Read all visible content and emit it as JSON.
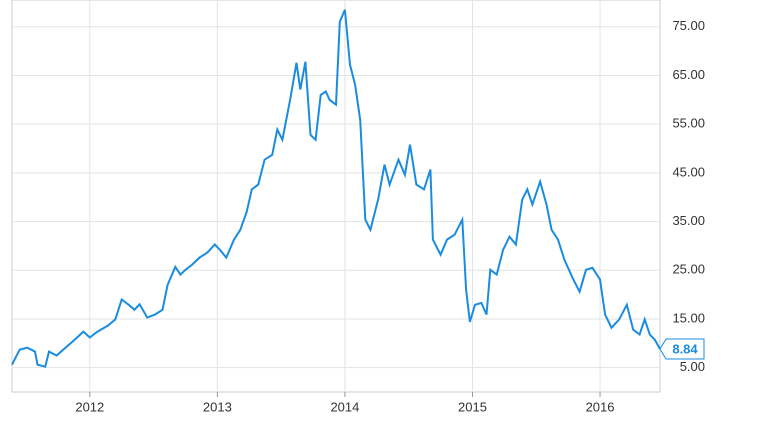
{
  "chart_data": {
    "type": "line",
    "x": [
      2011.39,
      2011.45,
      2011.51,
      2011.57,
      2011.59,
      2011.65,
      2011.68,
      2011.74,
      2011.8,
      2011.88,
      2011.95,
      2012.0,
      2012.06,
      2012.14,
      2012.2,
      2012.25,
      2012.3,
      2012.35,
      2012.39,
      2012.45,
      2012.51,
      2012.57,
      2012.61,
      2012.67,
      2012.71,
      2012.75,
      2012.8,
      2012.86,
      2012.92,
      2012.98,
      2013.02,
      2013.07,
      2013.13,
      2013.18,
      2013.23,
      2013.27,
      2013.32,
      2013.37,
      2013.43,
      2013.47,
      2013.51,
      2013.57,
      2013.62,
      2013.65,
      2013.69,
      2013.73,
      2013.77,
      2013.81,
      2013.85,
      2013.88,
      2013.93,
      2013.96,
      2014.0,
      2014.04,
      2014.08,
      2014.12,
      2014.16,
      2014.2,
      2014.26,
      2014.31,
      2014.35,
      2014.42,
      2014.47,
      2014.51,
      2014.56,
      2014.62,
      2014.67,
      2014.69,
      2014.75,
      2014.8,
      2014.86,
      2014.92,
      2014.95,
      2014.98,
      2015.02,
      2015.07,
      2015.11,
      2015.14,
      2015.19,
      2015.24,
      2015.29,
      2015.34,
      2015.39,
      2015.43,
      2015.47,
      2015.53,
      2015.58,
      2015.62,
      2015.67,
      2015.72,
      2015.79,
      2015.84,
      2015.89,
      2015.94,
      2016.0,
      2016.04,
      2016.09,
      2016.15,
      2016.21,
      2016.26,
      2016.31,
      2016.35,
      2016.39,
      2016.43,
      2016.47
    ],
    "series": [
      {
        "color": "#1a8ce0",
        "values": [
          5.6,
          8.7,
          9.1,
          8.3,
          5.6,
          5.2,
          8.3,
          7.5,
          8.9,
          10.7,
          12.4,
          11.2,
          12.4,
          13.6,
          14.9,
          19,
          18,
          16.9,
          18,
          15.3,
          15.9,
          16.9,
          22,
          25.7,
          24.1,
          25.1,
          26.1,
          27.6,
          28.6,
          30.3,
          29.2,
          27.6,
          31.3,
          33.3,
          37,
          41.6,
          42.6,
          47.7,
          48.7,
          53.9,
          51.8,
          60,
          67.6,
          62.1,
          67.8,
          52.8,
          51.8,
          61,
          61.7,
          60,
          59,
          76,
          78.5,
          67.2,
          63.1,
          55.9,
          35.4,
          33.3,
          39.5,
          46.7,
          42.6,
          47.7,
          44.6,
          50.8,
          42.6,
          41.6,
          45.7,
          31.3,
          28.2,
          31.3,
          32.3,
          35.4,
          21,
          14.4,
          17.9,
          18.3,
          15.9,
          25.1,
          24.1,
          29.2,
          31.9,
          30.3,
          39.5,
          41.6,
          38.5,
          43.2,
          38.5,
          33.3,
          31.3,
          27.2,
          23.1,
          20.6,
          25.1,
          25.5,
          23.1,
          15.9,
          13.2,
          14.9,
          17.9,
          12.8,
          11.8,
          14.9,
          11.8,
          10.7,
          8.84
        ]
      }
    ],
    "last_value": 8.84,
    "xlim": [
      2011.39,
      2016.47
    ],
    "xticks": [
      2012,
      2013,
      2014,
      2015,
      2016
    ],
    "ylim": [
      0,
      80.5
    ],
    "yticks": [
      {
        "value": 5,
        "label": "5.00"
      },
      {
        "value": 15,
        "label": "15.00"
      },
      {
        "value": 25,
        "label": "25.00"
      },
      {
        "value": 35,
        "label": "35.00"
      },
      {
        "value": 45,
        "label": "45.00"
      },
      {
        "value": 55,
        "label": "55.00"
      },
      {
        "value": 65,
        "label": "65.00"
      },
      {
        "value": 75,
        "label": "75.00"
      }
    ],
    "grid": true
  }
}
